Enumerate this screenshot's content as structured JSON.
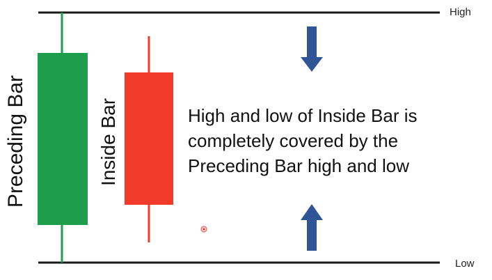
{
  "levels": {
    "high_label": "High",
    "low_label": "Low"
  },
  "bars": {
    "preceding": {
      "label": "Preceding Bar",
      "color": "#1e9e4a"
    },
    "inside": {
      "label": "Inside Bar",
      "color": "#f23a2a"
    }
  },
  "explanation": {
    "lines": [
      "High and low of Inside Bar is",
      "completely covered by the",
      "Preceding Bar high and low"
    ]
  },
  "arrows": {
    "color": "#2f5597",
    "top_direction": "down",
    "bottom_direction": "up"
  }
}
